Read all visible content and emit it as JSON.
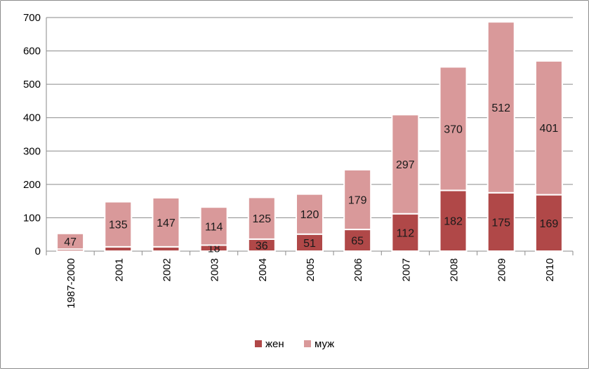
{
  "chart_data": {
    "type": "bar",
    "stacked": true,
    "categories": [
      "1987-2000",
      "2001",
      "2002",
      "2003",
      "2004",
      "2005",
      "2006",
      "2007",
      "2008",
      "2009",
      "2010"
    ],
    "series": [
      {
        "name": "жен",
        "color": "#b04848",
        "values": [
          6,
          13,
          13,
          18,
          36,
          51,
          65,
          112,
          182,
          175,
          169
        ],
        "labels": [
          "",
          "",
          "",
          "18",
          "36",
          "51",
          "65",
          "112",
          "182",
          "175",
          "169"
        ]
      },
      {
        "name": "муж",
        "color": "#d9999a",
        "values": [
          47,
          135,
          147,
          114,
          125,
          120,
          179,
          297,
          370,
          512,
          401
        ],
        "labels": [
          "47",
          "135",
          "147",
          "114",
          "125",
          "120",
          "179",
          "297",
          "370",
          "512",
          "401"
        ]
      }
    ],
    "y_ticks": [
      "0",
      "100",
      "200",
      "300",
      "400",
      "500",
      "600",
      "700"
    ],
    "ylim": [
      0,
      700
    ],
    "grid": true,
    "legend_position": "bottom-center",
    "title": "",
    "xlabel": "",
    "ylabel": ""
  }
}
